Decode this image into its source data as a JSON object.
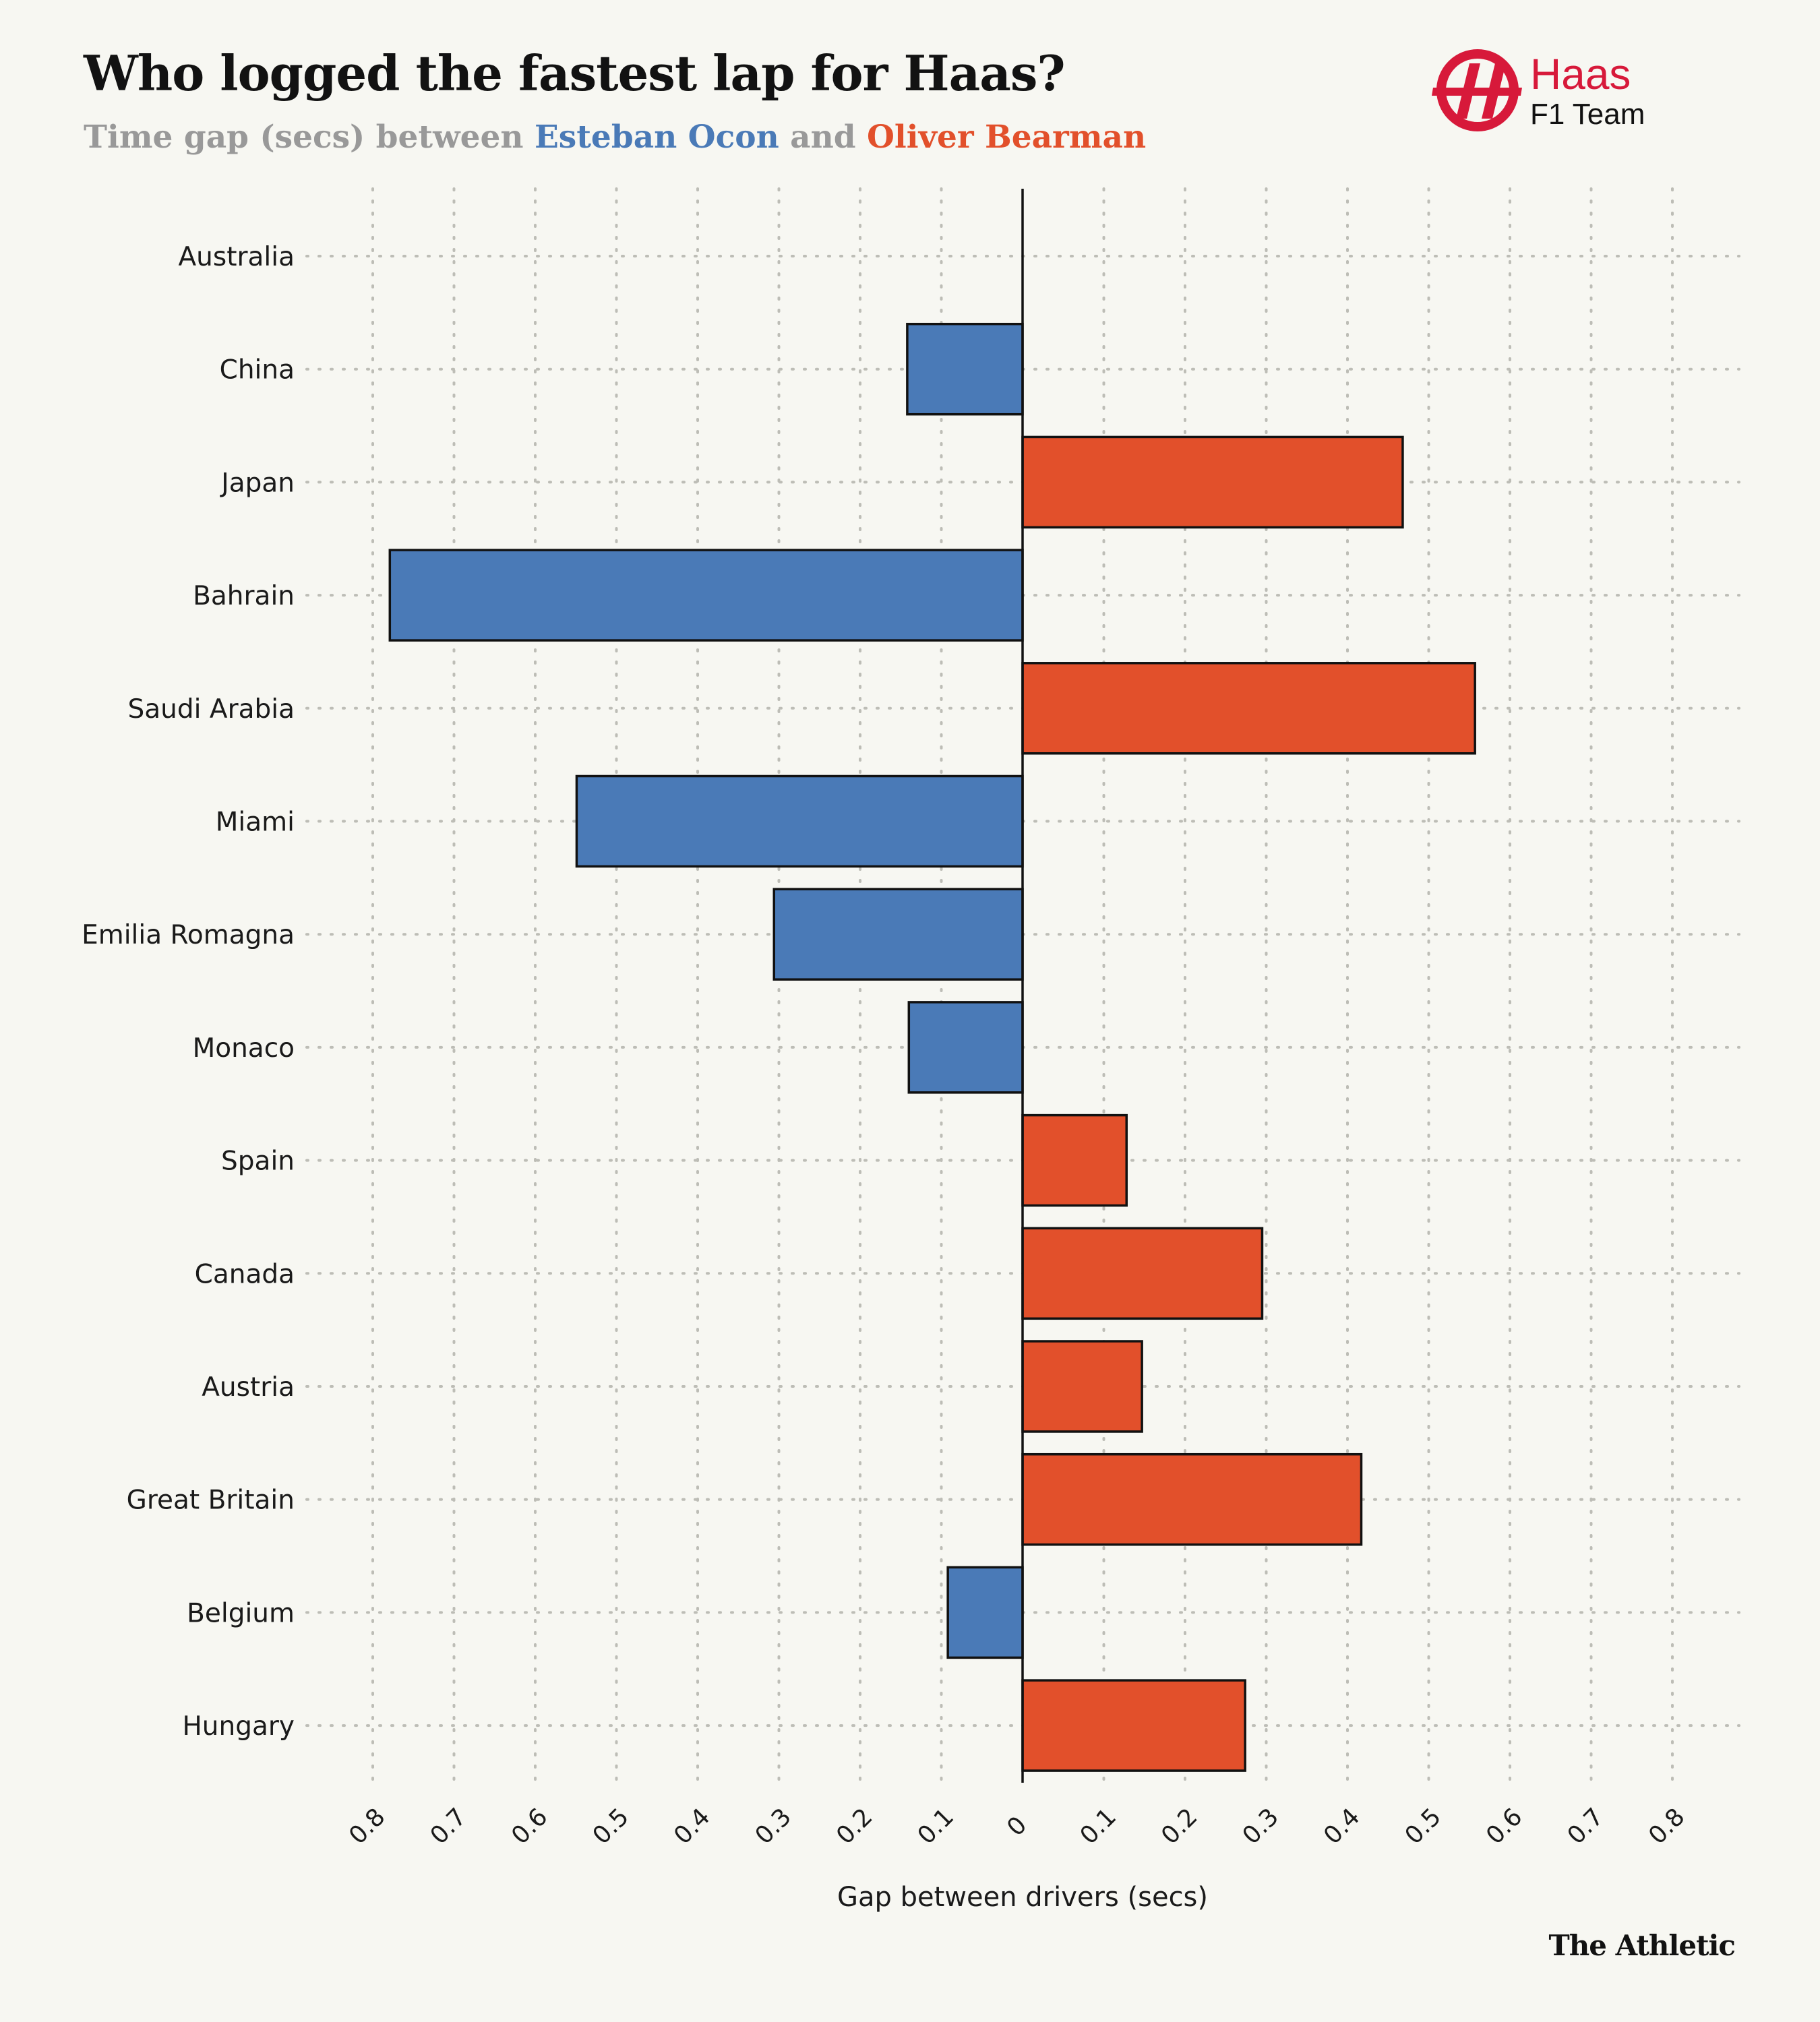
{
  "title": "Who logged the fastest lap for Haas?",
  "subtitle": {
    "prefix": "Time gap (secs) between ",
    "driver_a": "Esteban Ocon",
    "middle": " and ",
    "driver_b": "Oliver Bearman"
  },
  "logo": {
    "word": "Haas",
    "sub": "F1 Team"
  },
  "credit": "The Athletic",
  "colors": {
    "ocon": "#4a7ab7",
    "bearman": "#e2502b",
    "logo_red": "#d7193a",
    "background": "#f7f7f2"
  },
  "chart_data": {
    "type": "bar",
    "orientation": "horizontal",
    "diverging": true,
    "xlabel": "Gap between drivers (secs)",
    "xlim": [
      -0.8,
      0.8
    ],
    "xticks": [
      -0.8,
      -0.7,
      -0.6,
      -0.5,
      -0.4,
      -0.3,
      -0.2,
      -0.1,
      0,
      0.1,
      0.2,
      0.3,
      0.4,
      0.5,
      0.6,
      0.7,
      0.8
    ],
    "xtick_labels": [
      "0.8",
      "0.7",
      "0.6",
      "0.5",
      "0.4",
      "0.3",
      "0.2",
      "0.1",
      "0",
      "0.1",
      "0.2",
      "0.3",
      "0.4",
      "0.5",
      "0.6",
      "0.7",
      "0.8"
    ],
    "grid": true,
    "categories": [
      "Australia",
      "China",
      "Japan",
      "Bahrain",
      "Saudi Arabia",
      "Miami",
      "Emilia Romagna",
      "Monaco",
      "Spain",
      "Canada",
      "Austria",
      "Great Britain",
      "Belgium",
      "Hungary"
    ],
    "values": [
      0,
      -0.142,
      0.468,
      -0.779,
      0.557,
      -0.549,
      -0.306,
      -0.14,
      0.128,
      0.295,
      0.147,
      0.417,
      -0.092,
      0.274
    ],
    "series_colors": {
      "negative": "#4a7ab7",
      "positive": "#e2502b"
    }
  }
}
